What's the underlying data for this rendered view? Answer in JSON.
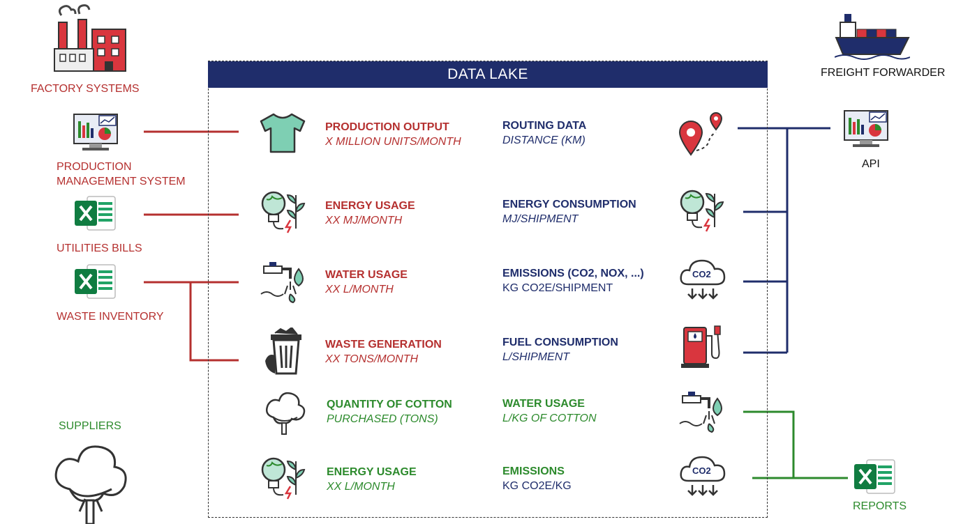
{
  "data_lake": {
    "title": "DATA LAKE"
  },
  "sources_left": {
    "factory": "FACTORY SYSTEMS",
    "pms_line1": "PRODUCTION",
    "pms_line2": "MANAGEMENT SYSTEM",
    "utilities": "UTILITIES  BILLS",
    "waste": "WASTE INVENTORY",
    "suppliers": "SUPPLIERS"
  },
  "sources_right": {
    "freight": "FREIGHT FORWARDER",
    "api": "API",
    "reports": "REPORTS"
  },
  "metrics_left": [
    {
      "title": "PRODUCTION OUTPUT",
      "sub": "X MILLION UNITS/MONTH"
    },
    {
      "title": "ENERGY USAGE",
      "sub": "XX MJ/MONTH"
    },
    {
      "title": "WATER USAGE",
      "sub": "XX L/MONTH"
    },
    {
      "title": "WASTE GENERATION",
      "sub": "XX TONS/MONTH"
    },
    {
      "title": "QUANTITY OF COTTON",
      "sub": "PURCHASED (TONS)"
    },
    {
      "title": "ENERGY USAGE",
      "sub": "XX L/MONTH"
    }
  ],
  "metrics_right": [
    {
      "title": "ROUTING DATA",
      "sub": "DISTANCE (KM)"
    },
    {
      "title": "ENERGY CONSUMPTION",
      "sub": "MJ/SHIPMENT"
    },
    {
      "title": "EMISSIONS (CO2, NOX, ...)",
      "sub": "KG CO2E/SHIPMENT"
    },
    {
      "title": "FUEL CONSUMPTION",
      "sub": "L/SHIPMENT"
    },
    {
      "title": "WATER USAGE",
      "sub": "L/KG OF COTTON"
    },
    {
      "title": "EMISSIONS",
      "sub": "KG CO2E/KG"
    }
  ],
  "icon_text": {
    "co2": "CO2"
  },
  "colors": {
    "red": "#b5302f",
    "navy": "#1f2d6b",
    "green": "#2c8a2c"
  }
}
